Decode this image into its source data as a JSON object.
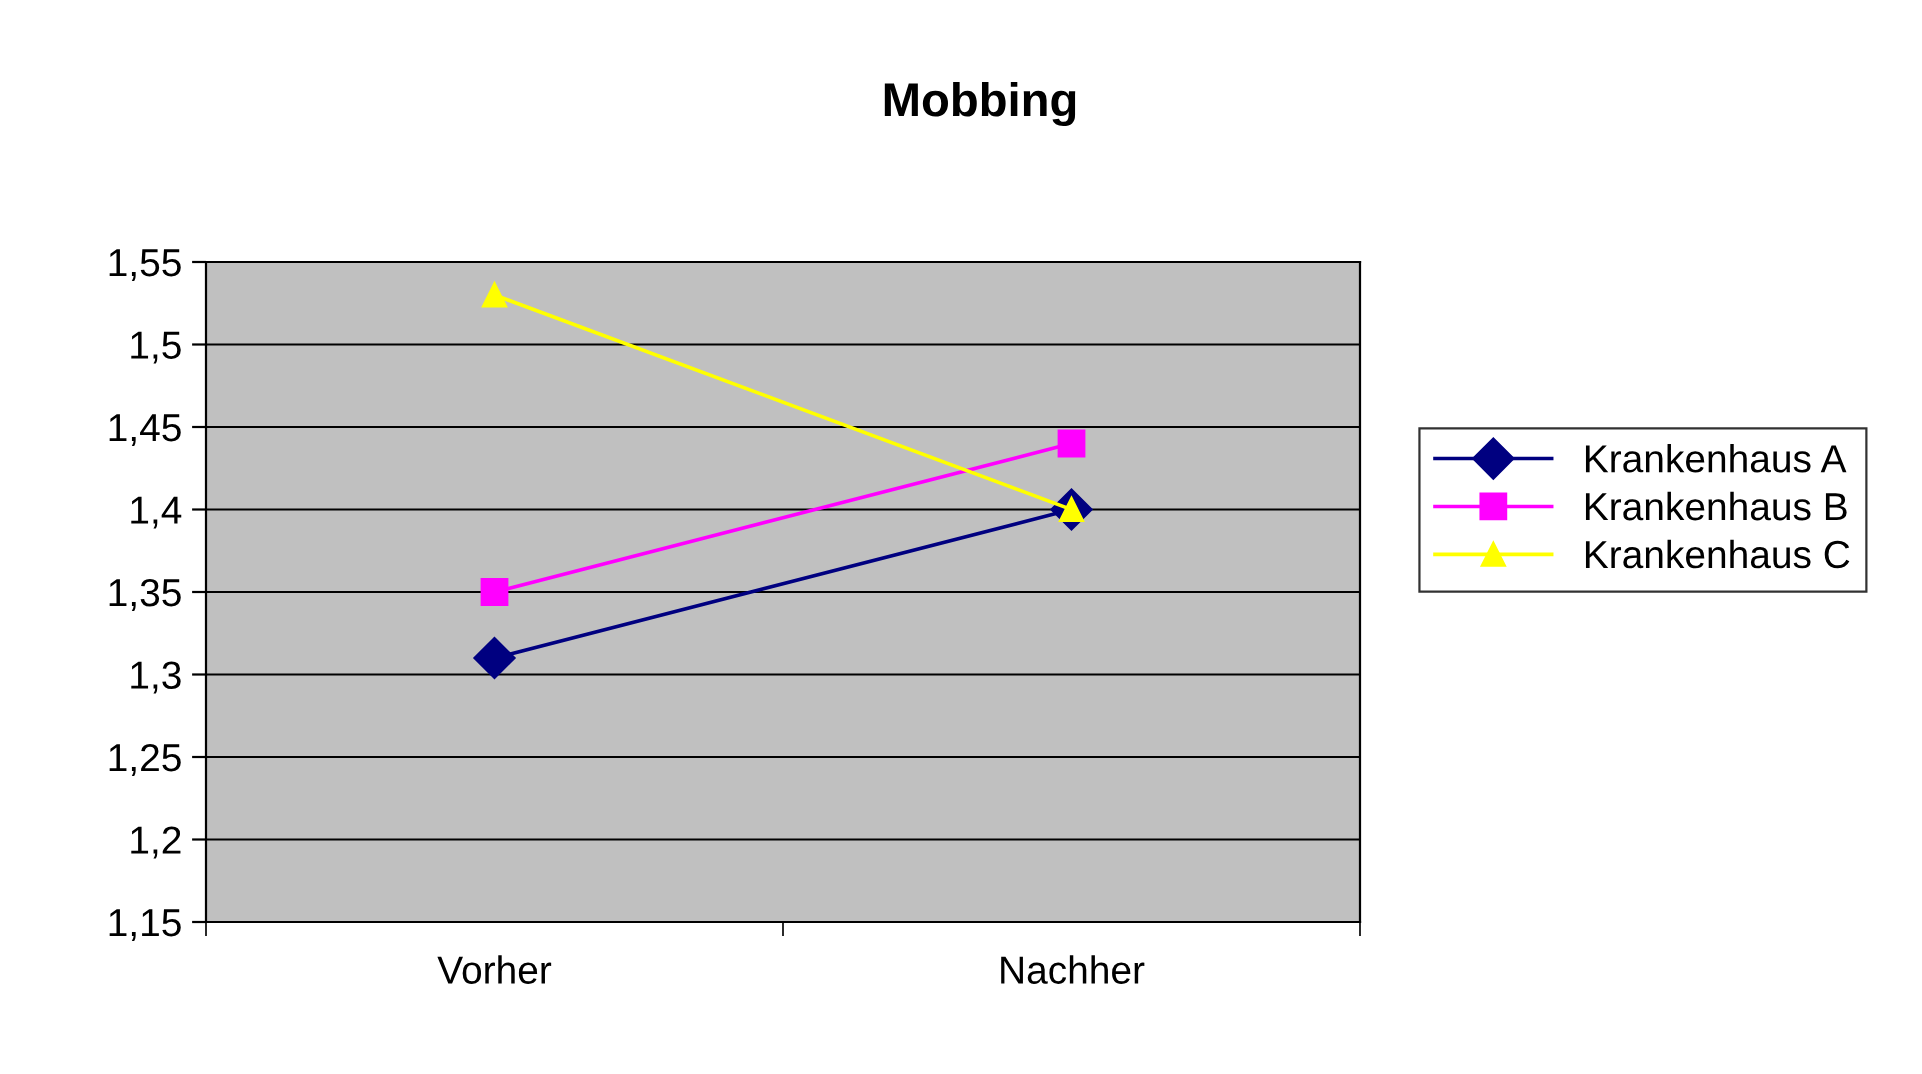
{
  "chart_data": {
    "type": "line",
    "title": "Mobbing",
    "categories": [
      "Vorher",
      "Nachher"
    ],
    "series": [
      {
        "name": "Krankenhaus A",
        "color": "#000080",
        "values": [
          1.31,
          1.4
        ],
        "marker": "diamond"
      },
      {
        "name": "Krankenhaus B",
        "color": "#ff00ff",
        "values": [
          1.35,
          1.44
        ],
        "marker": "square"
      },
      {
        "name": "Krankenhaus C",
        "color": "#ffff00",
        "values": [
          1.53,
          1.4
        ],
        "marker": "triangle"
      }
    ],
    "ylim": [
      1.15,
      1.55
    ],
    "yticks": [
      {
        "value": 1.15,
        "label": "1,15"
      },
      {
        "value": 1.2,
        "label": "1,2"
      },
      {
        "value": 1.25,
        "label": "1,25"
      },
      {
        "value": 1.3,
        "label": "1,3"
      },
      {
        "value": 1.35,
        "label": "1,35"
      },
      {
        "value": 1.4,
        "label": "1,4"
      },
      {
        "value": 1.45,
        "label": "1,45"
      },
      {
        "value": 1.5,
        "label": "1,5"
      },
      {
        "value": 1.55,
        "label": "1,55"
      }
    ],
    "grid": "y",
    "legend": "right",
    "line_style": "solid"
  }
}
